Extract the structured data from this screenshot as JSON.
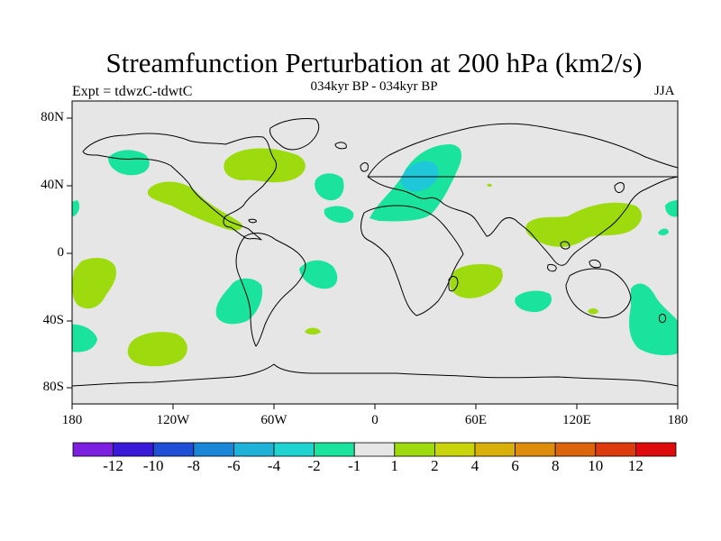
{
  "title": "Streamfunction Perturbation at 200 hPa (km2/s)",
  "experiment": "Expt = tdwzC-tdwtC",
  "subtitle": "034kyr BP - 034kyr BP",
  "season": "JJA",
  "lat_labels": [
    "80N",
    "40N",
    "0",
    "40S",
    "80S"
  ],
  "lon_labels": [
    "180",
    "120W",
    "60W",
    "0",
    "60E",
    "120E",
    "180"
  ],
  "colorbar": {
    "colors": [
      "#7d1fe0",
      "#3a1ad8",
      "#1e4fd6",
      "#1a86d8",
      "#1fb2d8",
      "#1fd3d0",
      "#19e39c",
      "#e6e6e6",
      "#9ddb0e",
      "#c9d40b",
      "#d9b00a",
      "#dd8c0b",
      "#dc650c",
      "#dd3a0d",
      "#dd0b0b"
    ],
    "labels": [
      "-12",
      "-10",
      "-8",
      "-6",
      "-4",
      "-2",
      "-1",
      "1",
      "2",
      "4",
      "6",
      "8",
      "10",
      "12"
    ]
  },
  "colors": {
    "ocean_bg": "#e6e6e6",
    "positive": "#9ddb0e",
    "negative": "#19e39c",
    "strong_negative": "#1fc8d8",
    "coast": "#000000"
  }
}
